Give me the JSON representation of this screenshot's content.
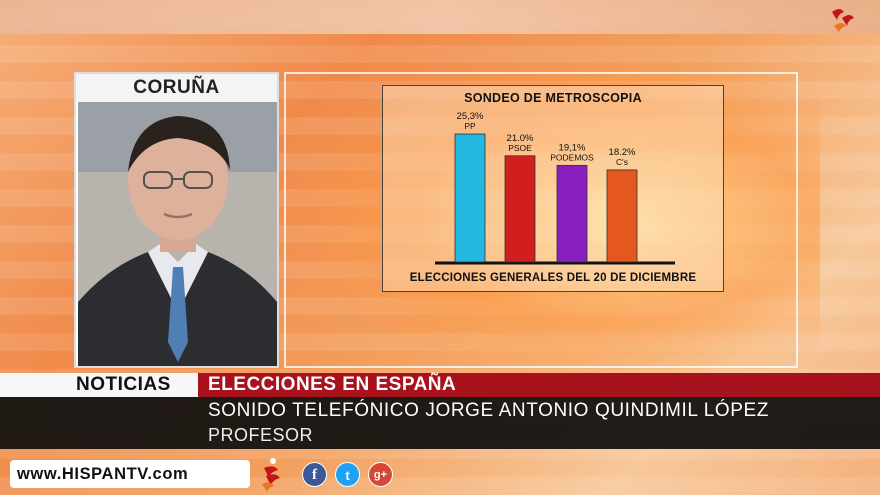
{
  "location_label": "CORUÑA",
  "poll": {
    "title": "SONDEO DE METROSCOPIA",
    "footer": "ELECCIONES GENERALES DEL 20 DE DICIEMBRE",
    "parties": [
      {
        "pct": "25,3%",
        "name": "PP",
        "color": "#22b8e2"
      },
      {
        "pct": "21.0%",
        "name": "PSOE",
        "color": "#d11f1f"
      },
      {
        "pct": "19,1%",
        "name": "PODEMOS",
        "color": "#8a1fbf"
      },
      {
        "pct": "18.2%",
        "name": "C's",
        "color": "#e4571f"
      }
    ]
  },
  "chart_data": {
    "type": "bar",
    "title": "SONDEO DE METROSCOPIA",
    "xlabel": "ELECCIONES GENERALES DEL 20 DE DICIEMBRE",
    "ylabel": "",
    "categories": [
      "PP",
      "PSOE",
      "PODEMOS",
      "C's"
    ],
    "values": [
      25.3,
      21.0,
      19.1,
      18.2
    ],
    "data_labels": [
      "25,3%",
      "21.0%",
      "19,1%",
      "18.2%"
    ],
    "colors": [
      "#22b8e2",
      "#d11f1f",
      "#8a1fbf",
      "#e4571f"
    ],
    "ylim": [
      0,
      25.3
    ],
    "grid": false,
    "legend": "none"
  },
  "lower_third": {
    "section": "NOTICIAS",
    "headline": "ELECCIONES EN ESPAÑA",
    "name": "SONIDO TELEFÓNICO JORGE ANTONIO QUINDIMIL LÓPEZ",
    "role": "PROFESOR"
  },
  "footer": {
    "url": "www.HISPANTV.com",
    "social": {
      "facebook": "f",
      "twitter": "t",
      "google_plus": "g+"
    }
  },
  "icons": [
    "hispantv-logo-icon",
    "facebook-icon",
    "twitter-icon",
    "google-plus-icon"
  ]
}
